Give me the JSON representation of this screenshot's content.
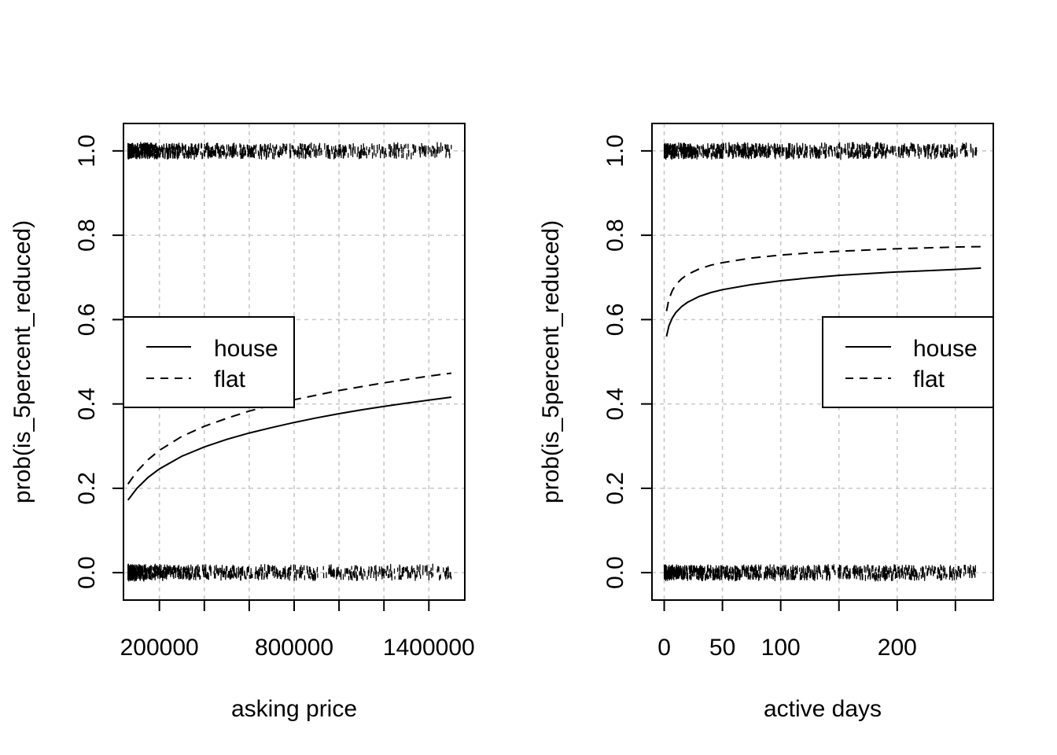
{
  "chart_data": [
    {
      "type": "scatter",
      "title": "",
      "xlabel": "asking price",
      "ylabel": "prob(is_5percent_reduced)",
      "xlim": [
        40000,
        1560000
      ],
      "ylim": [
        -0.065,
        1.065
      ],
      "x_ticks": [
        200000,
        400000,
        600000,
        800000,
        1000000,
        1200000,
        1400000
      ],
      "x_tick_labels": [
        "200000",
        "",
        "",
        "800000",
        "",
        "",
        "1400000"
      ],
      "y_ticks": [
        0.0,
        0.2,
        0.4,
        0.6,
        0.8,
        1.0
      ],
      "y_tick_labels": [
        "0.0",
        "0.2",
        "0.4",
        "0.6",
        "0.8",
        "1.0"
      ],
      "grid": true,
      "legend_position": "left-middle",
      "observations": {
        "marker": "vertical-dash",
        "y_levels": [
          0,
          1
        ],
        "x_min": 60000,
        "x_max": 1500000,
        "note_levels": "jittered rug of observed outcomes at 0 and 1"
      },
      "series": [
        {
          "name": "house",
          "line": "solid",
          "x": [
            60000,
            100000,
            150000,
            200000,
            300000,
            400000,
            500000,
            600000,
            700000,
            800000,
            900000,
            1000000,
            1100000,
            1200000,
            1300000,
            1400000,
            1500000
          ],
          "y": [
            0.172,
            0.2,
            0.226,
            0.246,
            0.276,
            0.298,
            0.316,
            0.331,
            0.344,
            0.356,
            0.367,
            0.377,
            0.386,
            0.394,
            0.402,
            0.409,
            0.416
          ]
        },
        {
          "name": "flat",
          "line": "dashed",
          "x": [
            60000,
            100000,
            150000,
            200000,
            300000,
            400000,
            500000,
            600000,
            700000,
            800000,
            900000,
            1000000,
            1100000,
            1200000,
            1300000,
            1400000,
            1500000
          ],
          "y": [
            0.21,
            0.24,
            0.268,
            0.29,
            0.323,
            0.347,
            0.366,
            0.383,
            0.397,
            0.41,
            0.421,
            0.432,
            0.441,
            0.45,
            0.458,
            0.466,
            0.473
          ]
        }
      ],
      "colors": {
        "lines": "#000000",
        "grid": "#c8c8c8",
        "box": "#000000"
      }
    },
    {
      "type": "scatter",
      "title": "",
      "xlabel": "active days",
      "ylabel": "prob(is_5percent_reduced)",
      "xlim": [
        -10.5,
        282.5
      ],
      "ylim": [
        -0.065,
        1.065
      ],
      "x_ticks": [
        0,
        50,
        100,
        150,
        200,
        250
      ],
      "x_tick_labels": [
        "0",
        "50",
        "100",
        "",
        "200",
        ""
      ],
      "y_ticks": [
        0.0,
        0.2,
        0.4,
        0.6,
        0.8,
        1.0
      ],
      "y_tick_labels": [
        "0.0",
        "0.2",
        "0.4",
        "0.6",
        "0.8",
        "1.0"
      ],
      "grid": true,
      "legend_position": "right-middle",
      "observations": {
        "marker": "vertical-dash",
        "y_levels": [
          0,
          1
        ],
        "x_min": 0,
        "x_max": 268,
        "note_levels": "jittered rug of observed outcomes at 0 and 1"
      },
      "series": [
        {
          "name": "house",
          "line": "solid",
          "x": [
            2,
            4,
            7,
            10,
            15,
            20,
            30,
            40,
            50,
            75,
            100,
            125,
            150,
            175,
            200,
            225,
            250,
            272
          ],
          "y": [
            0.56,
            0.585,
            0.604,
            0.617,
            0.631,
            0.641,
            0.655,
            0.664,
            0.671,
            0.683,
            0.692,
            0.699,
            0.705,
            0.709,
            0.713,
            0.716,
            0.719,
            0.722
          ]
        },
        {
          "name": "flat",
          "line": "dashed",
          "x": [
            2,
            4,
            7,
            10,
            15,
            20,
            30,
            40,
            50,
            75,
            100,
            125,
            150,
            175,
            200,
            225,
            250,
            272
          ],
          "y": [
            0.62,
            0.648,
            0.669,
            0.683,
            0.697,
            0.707,
            0.72,
            0.729,
            0.735,
            0.746,
            0.753,
            0.758,
            0.762,
            0.765,
            0.768,
            0.77,
            0.772,
            0.773
          ]
        }
      ],
      "colors": {
        "lines": "#000000",
        "grid": "#c8c8c8",
        "box": "#000000"
      }
    }
  ]
}
